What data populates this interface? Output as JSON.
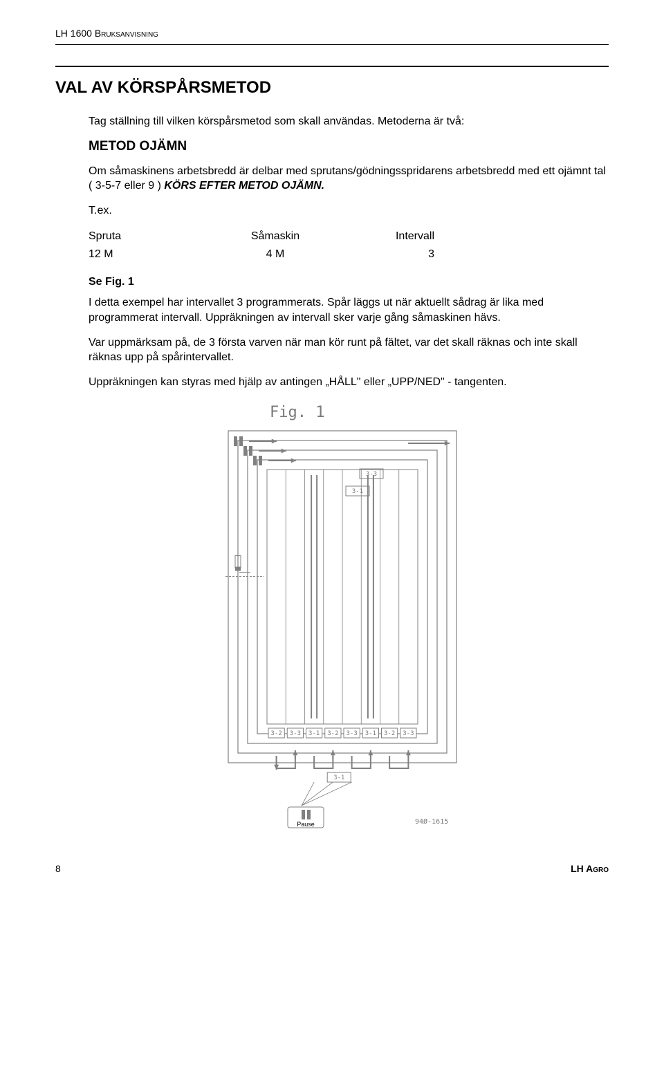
{
  "header": {
    "left": "LH 1600 Bruksanvisning"
  },
  "title": "VAL AV KÖRSPÅRSMETOD",
  "intro": "Tag ställning till vilken körspårsmetod som skall användas. Metoderna är två:",
  "method": {
    "heading": "METOD OJÄMN",
    "desc_pre": "Om såmaskinens arbetsbredd är delbar med sprutans/gödningsspridarens arbetsbredd med ett ojämnt tal ( 3-5-7 eller 9 ) ",
    "desc_bold": "KÖRS EFTER METOD OJÄMN.",
    "tex": "T.ex.",
    "table": {
      "h1": "Spruta",
      "h2": "Såmaskin",
      "h3": "Intervall",
      "v1": "12 M",
      "v2": "4 M",
      "v3": "3"
    },
    "see_fig": "Se Fig. 1",
    "p1": "I detta exempel har intervallet 3 programmerats. Spår läggs ut när aktuellt sådrag är lika med programmerat intervall. Uppräkningen av intervall sker varje gång såmaskinen hävs.",
    "p2": "Var uppmärksam på, de 3 första varven när man kör runt på fältet, var det skall räknas och inte skall räknas upp på spårintervallet.",
    "p3": "Uppräkningen kan styras med hjälp av antingen „HÅLL\" eller „UPP/NED\" - tangenten."
  },
  "figure": {
    "label": "Fig. 1",
    "pause_label": "Pause",
    "code": "94Ø-1615",
    "lane_marks": [
      "3-2",
      "3-3",
      "3-1",
      "3-2",
      "3-3",
      "3-1",
      "3-2",
      "3-3"
    ],
    "mid_mark": "3-1",
    "top_marks": [
      "3-3",
      "3-1"
    ],
    "colors": {
      "line": "#808080",
      "text": "#7a7a7a",
      "box_fill": "#ffffff",
      "box_stroke": "#808080",
      "pause_fill": "#ffffff"
    }
  },
  "footer": {
    "page": "8",
    "brand": "LH Agro"
  }
}
